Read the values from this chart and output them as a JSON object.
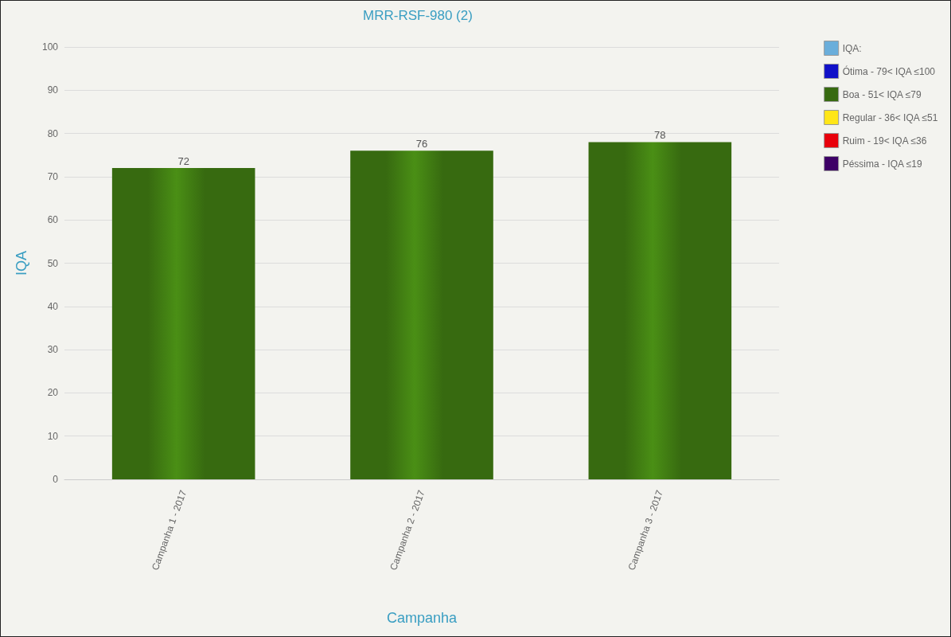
{
  "chart_data": {
    "type": "bar",
    "title": "MRR-RSF-980 (2)",
    "xlabel": "Campanha",
    "ylabel": "IQA",
    "categories": [
      "Campanha 1 - 2017",
      "Campanha 2 - 2017",
      "Campanha 3 - 2017"
    ],
    "series": [
      {
        "name": "IQA:",
        "color": "#6aaedb",
        "values": [
          null,
          null,
          null
        ]
      },
      {
        "name": "Ótima - 79< IQA ≤100",
        "color": "#1010c8",
        "values": [
          null,
          null,
          null
        ]
      },
      {
        "name": "Boa - 51< IQA ≤79",
        "color": "#376a10",
        "values": [
          72,
          76,
          78
        ]
      },
      {
        "name": "Regular - 36< IQA ≤51",
        "color": "#ffe617",
        "values": [
          null,
          null,
          null
        ]
      },
      {
        "name": "Ruim - 19< IQA ≤36",
        "color": "#e8000b",
        "values": [
          null,
          null,
          null
        ]
      },
      {
        "name": "Péssima - IQA ≤19",
        "color": "#3d0066",
        "values": [
          null,
          null,
          null
        ]
      }
    ],
    "stacked": true,
    "ylim": [
      0,
      100
    ],
    "yticks": [
      0,
      10,
      20,
      30,
      40,
      50,
      60,
      70,
      80,
      90,
      100
    ],
    "grid": "y",
    "legend": "top right",
    "data_labels": true
  }
}
